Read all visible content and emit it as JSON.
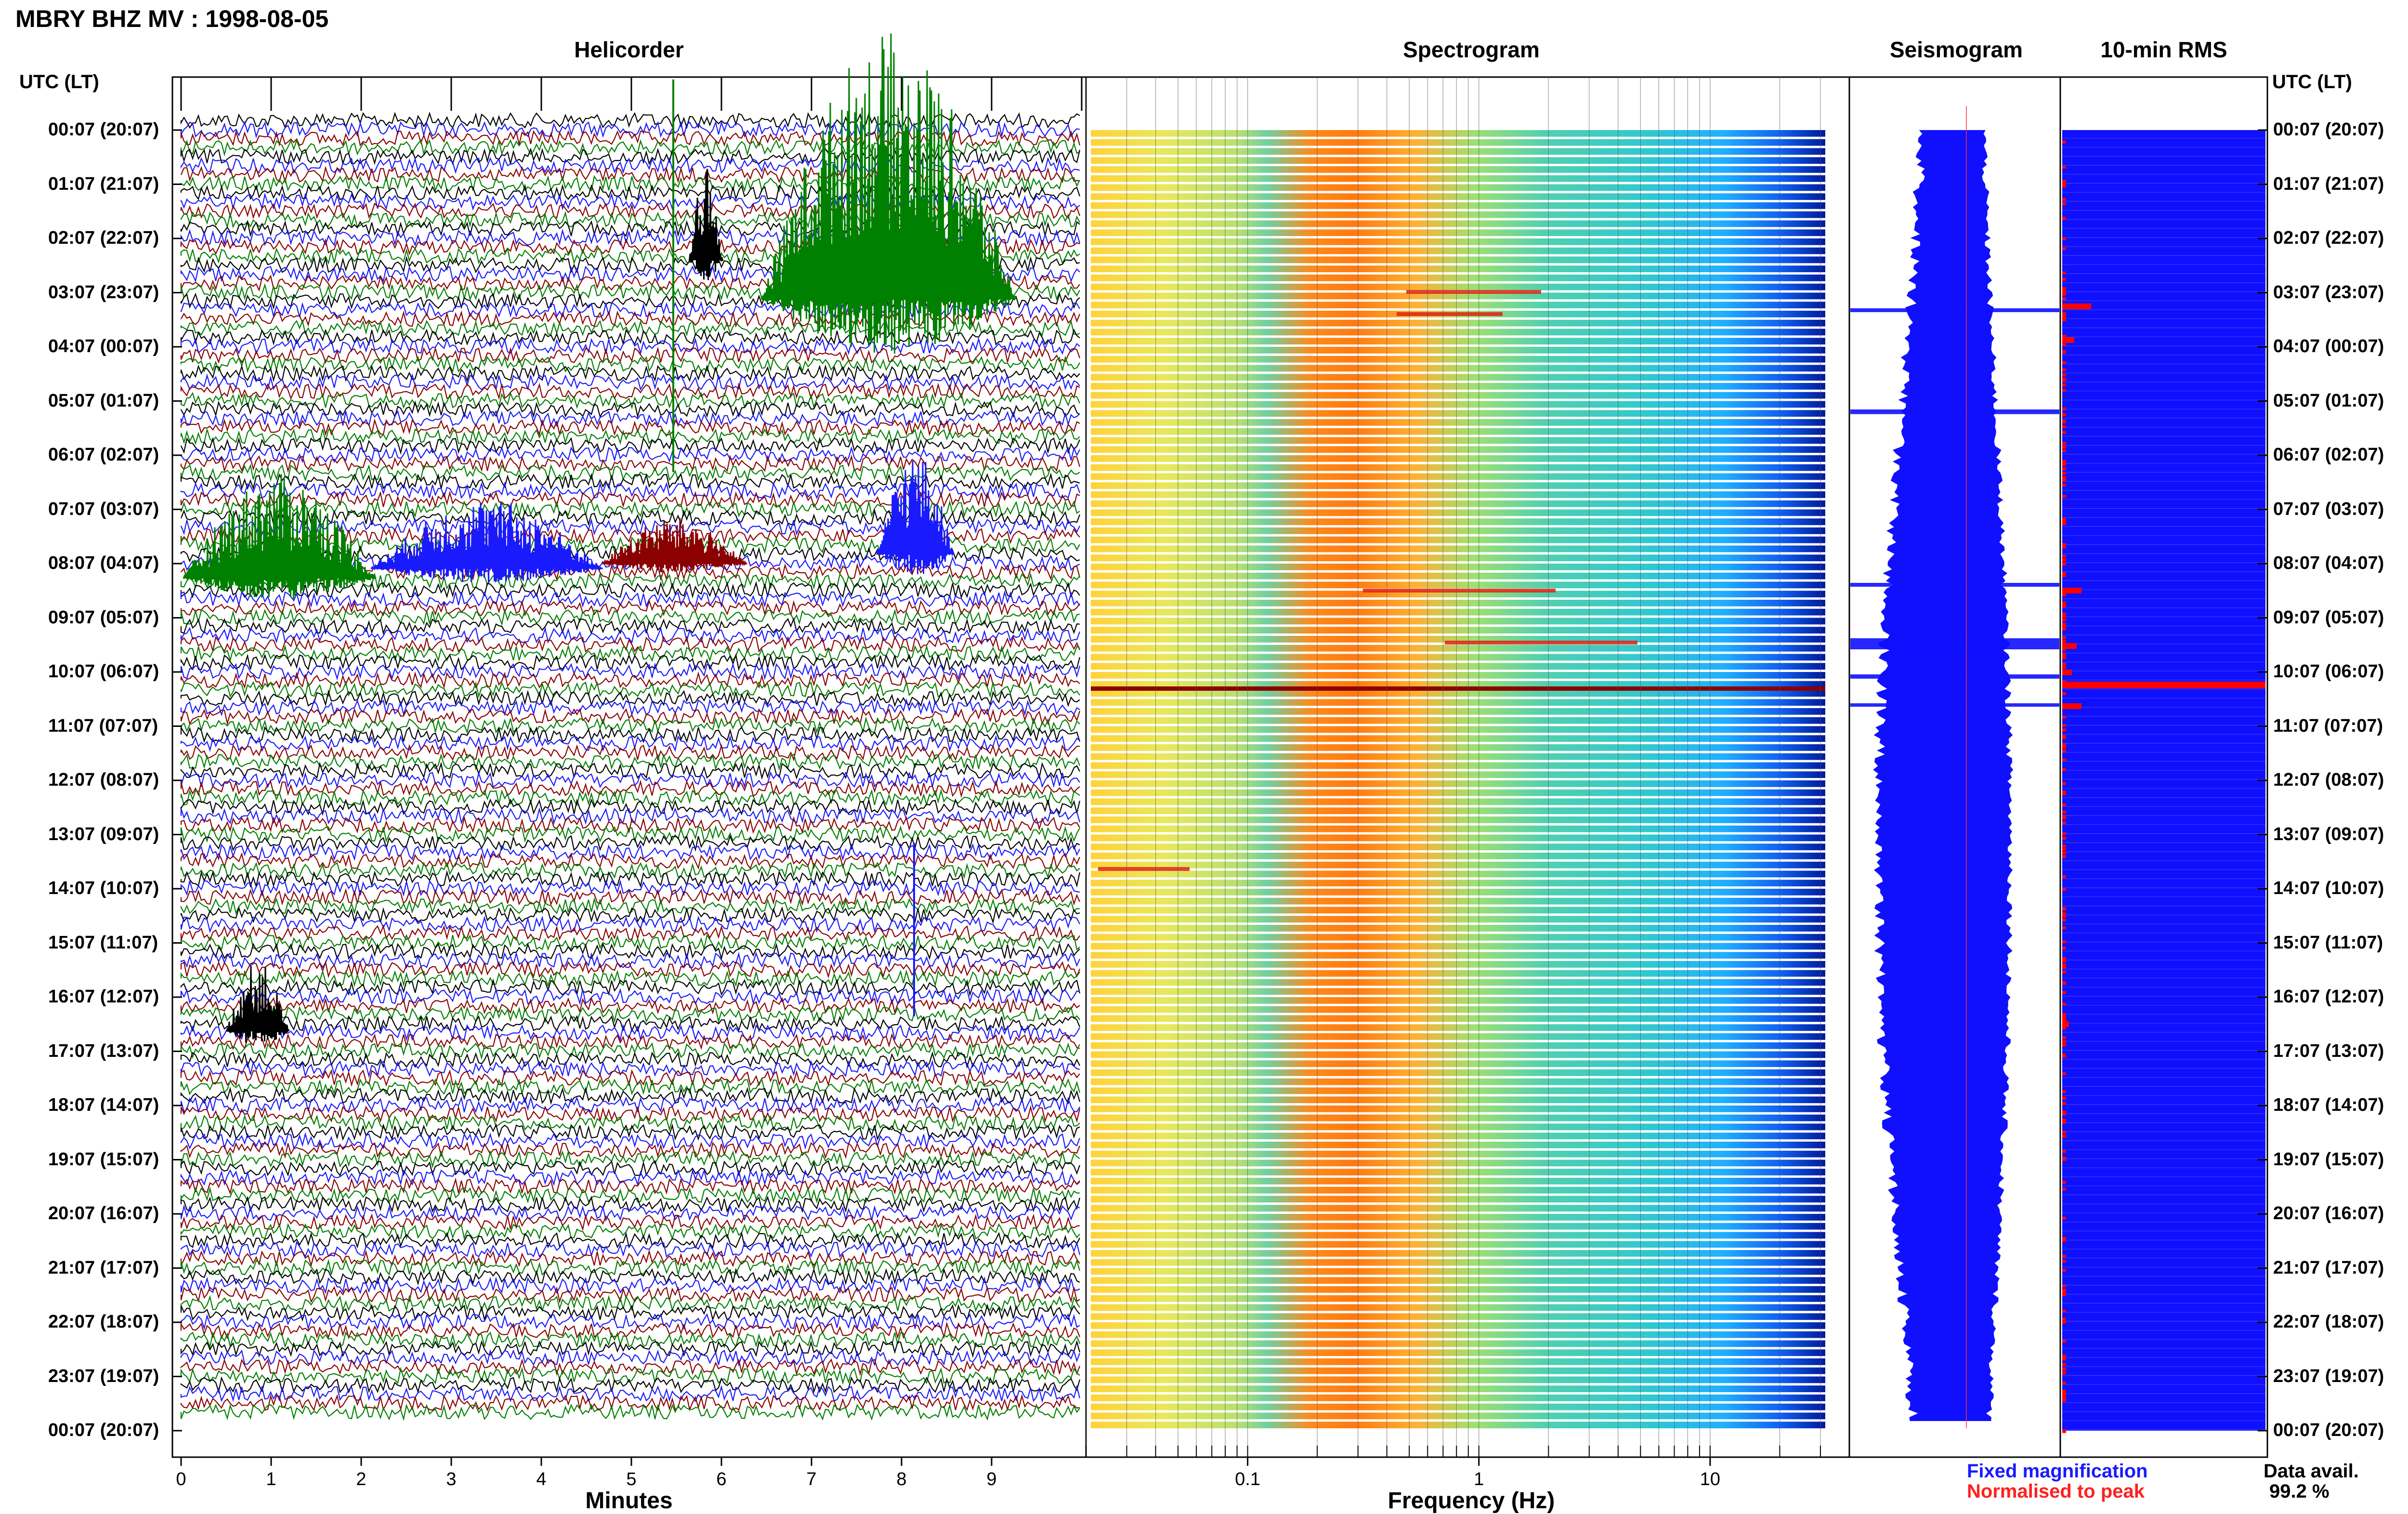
{
  "header": {
    "title": "MBRY BHZ MV : 1998-08-05"
  },
  "panels": {
    "helicorder": "Helicorder",
    "spectrogram": "Spectrogram",
    "seismogram": "Seismogram",
    "rms": "10-min RMS"
  },
  "axis": {
    "left_header": "UTC (LT)",
    "right_header": "UTC (LT)",
    "xlabel_helicorder": "Minutes",
    "xlabel_spectrogram": "Frequency (Hz)"
  },
  "legend": {
    "fixed": "Fixed magnification",
    "normalised": "Normalised to peak",
    "fixed_color": "#1a1aff",
    "normalised_color": "#ff2020"
  },
  "availability": {
    "label": "Data avail.",
    "value": "99.2 %"
  },
  "colors": {
    "trace_colors": [
      "#000000",
      "#1a1aff",
      "#8b0000",
      "#008000"
    ],
    "seismogram_fill": "#1010ff",
    "rms_fill": "#1010ff",
    "rms_peak": "#ff0000"
  },
  "chart_data": {
    "type": "heatmap",
    "time_labels": [
      "00:07 (20:07)",
      "01:07 (21:07)",
      "02:07 (22:07)",
      "03:07 (23:07)",
      "04:07 (00:07)",
      "05:07 (01:07)",
      "06:07 (02:07)",
      "07:07 (03:07)",
      "08:07 (04:07)",
      "09:07 (05:07)",
      "10:07 (06:07)",
      "11:07 (07:07)",
      "12:07 (08:07)",
      "13:07 (09:07)",
      "14:07 (10:07)",
      "15:07 (11:07)",
      "16:07 (12:07)",
      "17:07 (13:07)",
      "18:07 (14:07)",
      "19:07 (15:07)",
      "20:07 (16:07)",
      "21:07 (17:07)",
      "22:07 (18:07)",
      "23:07 (19:07)",
      "00:07 (20:07)"
    ],
    "helicorder": {
      "xlabel": "Minutes",
      "x_ticks": [
        "0",
        "1",
        "2",
        "3",
        "4",
        "5",
        "6",
        "7",
        "8",
        "9"
      ],
      "xlim": [
        0,
        10
      ]
    },
    "spectrogram": {
      "xlabel": "Frequency (Hz)",
      "x_ticks": [
        0.1,
        1,
        10
      ],
      "x_tick_labels": [
        "0.1",
        "1",
        "10"
      ],
      "xlim": [
        0.02,
        40
      ],
      "log_x": true
    }
  }
}
